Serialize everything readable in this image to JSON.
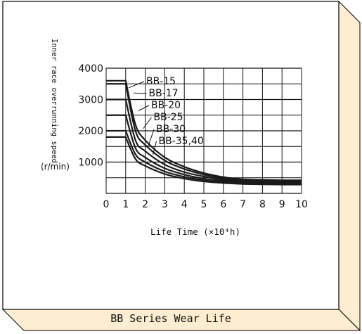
{
  "caption": "BB Series Wear Life",
  "colors": {
    "frame_bevel": "#fdeed2",
    "frame_border": "#000000",
    "curve": "#1a1a1a",
    "grid": "#111111"
  },
  "chart_data": {
    "type": "line",
    "title": "",
    "xlabel": "Life Time (×10⁴h)",
    "ylabel_rotated": "Inner race overrunning speed",
    "yunit": "(r/min)",
    "xlim": [
      0,
      10
    ],
    "ylim": [
      0,
      4000
    ],
    "x_ticks": [
      "0",
      "1",
      "2",
      "3",
      "4",
      "5",
      "6",
      "7",
      "8",
      "9",
      "10"
    ],
    "y_ticks": [
      "1000",
      "2000",
      "3000",
      "4000"
    ],
    "grid": true,
    "series": [
      {
        "name": "BB-15",
        "x": [
          0,
          1,
          1.5,
          2,
          3,
          4,
          5,
          6,
          7,
          8,
          9,
          10
        ],
        "y": [
          3600,
          3600,
          2200,
          1700,
          1150,
          850,
          650,
          520,
          450,
          430,
          420,
          420
        ]
      },
      {
        "name": "BB-17",
        "x": [
          0,
          1,
          1.5,
          2,
          3,
          4,
          5,
          6,
          7,
          8,
          9,
          10
        ],
        "y": [
          3500,
          3500,
          2000,
          1550,
          1050,
          780,
          600,
          480,
          420,
          400,
          390,
          380
        ]
      },
      {
        "name": "BB-20",
        "x": [
          0,
          1,
          1.5,
          2,
          3,
          4,
          5,
          6,
          7,
          8,
          9,
          10
        ],
        "y": [
          3000,
          3000,
          1700,
          1350,
          920,
          680,
          540,
          440,
          390,
          370,
          360,
          350
        ]
      },
      {
        "name": "BB-25",
        "x": [
          0,
          1,
          1.5,
          2,
          3,
          4,
          5,
          6,
          7,
          8,
          9,
          10
        ],
        "y": [
          2500,
          2500,
          1450,
          1150,
          800,
          600,
          470,
          400,
          360,
          340,
          330,
          320
        ]
      },
      {
        "name": "BB-30",
        "x": [
          0,
          1,
          1.5,
          2,
          3,
          4,
          5,
          6,
          7,
          8,
          9,
          10
        ],
        "y": [
          2000,
          2000,
          1250,
          1000,
          700,
          530,
          420,
          360,
          330,
          310,
          300,
          300
        ]
      },
      {
        "name": "BB-35,40",
        "x": [
          0,
          1,
          1.5,
          2,
          3,
          4,
          5,
          6,
          7,
          8,
          9,
          10
        ],
        "y": [
          1800,
          1800,
          1100,
          880,
          620,
          470,
          380,
          330,
          300,
          290,
          280,
          280
        ]
      }
    ]
  }
}
